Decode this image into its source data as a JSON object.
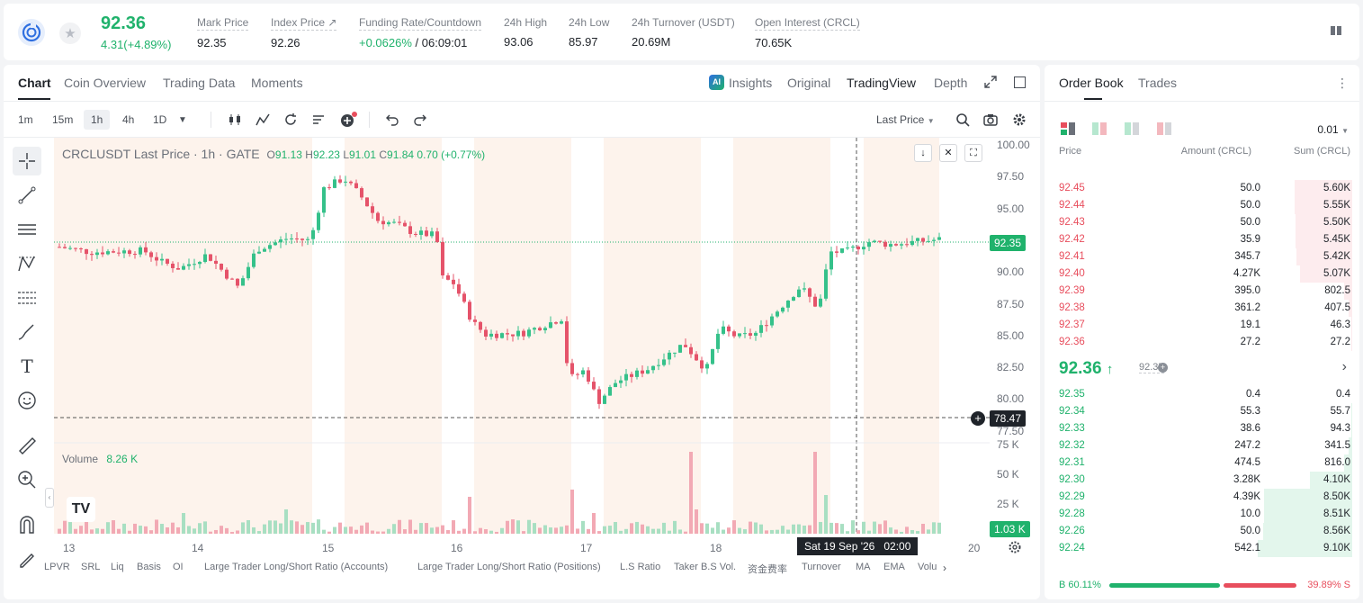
{
  "header": {
    "last_price": "92.36",
    "change": "4.31(+4.89%)",
    "stats": [
      {
        "label": "Mark Price",
        "value": "92.35"
      },
      {
        "label": "Index Price ↗",
        "value": "92.26"
      },
      {
        "label": "Funding Rate/Countdown",
        "value_green": "+0.0626%",
        "value": " / 06:09:01"
      },
      {
        "label": "24h High",
        "value": "93.06"
      },
      {
        "label": "24h Low",
        "value": "85.97"
      },
      {
        "label": "24h Turnover (USDT)",
        "value": "20.69M"
      },
      {
        "label": "Open Interest (CRCL)",
        "value": "70.65K"
      }
    ]
  },
  "chart_tabs": {
    "chart": "Chart",
    "coin": "Coin Overview",
    "trading": "Trading Data",
    "moments": "Moments"
  },
  "view_tabs": {
    "insights": "Insights",
    "original": "Original",
    "tradingview": "TradingView",
    "depth": "Depth"
  },
  "intervals": [
    "1m",
    "15m",
    "1h",
    "4h",
    "1D"
  ],
  "price_type": "Last Price",
  "legend": {
    "symbol": "CRCLUSDT Last Price · 1h · GATE",
    "o_label": "O",
    "o": "91.13",
    "h_label": "H",
    "h": "92.23",
    "l_label": "L",
    "l": "91.01",
    "c_label": "C",
    "c": "91.84",
    "chg": "0.70 (+0.77%)"
  },
  "volume": {
    "label": "Volume",
    "value": "8.26 K"
  },
  "price_axis": [
    "100.00",
    "97.50",
    "95.00",
    "92.50",
    "90.00",
    "87.50",
    "85.00",
    "82.50",
    "80.00",
    "77.50"
  ],
  "vol_axis": [
    "75 K",
    "50 K",
    "25 K"
  ],
  "price_tag": "92.35",
  "cross_tag": "78.47",
  "vol_tag": "1.03 K",
  "time_axis": [
    "13",
    "14",
    "15",
    "16",
    "17",
    "18",
    "20"
  ],
  "cross_time": "Sat 19 Sep '26",
  "cross_hour": "02:00",
  "indicators": [
    "LPVR",
    "SRL",
    "Liq",
    "Basis",
    "OI",
    "Large Trader Long/Short Ratio (Accounts)",
    "Large Trader Long/Short Ratio (Positions)",
    "L.S Ratio",
    "Taker B.S Vol.",
    "资金费率",
    "Turnover",
    "MA",
    "EMA",
    "Volu"
  ],
  "orderbook": {
    "tab_ob": "Order Book",
    "tab_trades": "Trades",
    "precision": "0.01",
    "col_price": "Price",
    "col_amount": "Amount (CRCL)",
    "col_sum": "Sum (CRCL)",
    "asks": [
      {
        "p": "92.45",
        "a": "50.0",
        "s": "5.60K",
        "d": 0.61
      },
      {
        "p": "92.44",
        "a": "50.0",
        "s": "5.55K",
        "d": 0.61
      },
      {
        "p": "92.43",
        "a": "50.0",
        "s": "5.50K",
        "d": 0.6
      },
      {
        "p": "92.42",
        "a": "35.9",
        "s": "5.45K",
        "d": 0.6
      },
      {
        "p": "92.41",
        "a": "345.7",
        "s": "5.42K",
        "d": 0.59
      },
      {
        "p": "92.40",
        "a": "4.27K",
        "s": "5.07K",
        "d": 0.55
      },
      {
        "p": "92.39",
        "a": "395.0",
        "s": "802.5",
        "d": 0.09
      },
      {
        "p": "92.38",
        "a": "361.2",
        "s": "407.5",
        "d": 0.04
      },
      {
        "p": "92.37",
        "a": "19.1",
        "s": "46.3",
        "d": 0.01
      },
      {
        "p": "92.36",
        "a": "27.2",
        "s": "27.2",
        "d": 0.005
      }
    ],
    "mid_price": "92.36",
    "mid_mark": "92.35",
    "bids": [
      {
        "p": "92.35",
        "a": "0.4",
        "s": "0.4",
        "d": 0.0
      },
      {
        "p": "92.34",
        "a": "55.3",
        "s": "55.7",
        "d": 0.006
      },
      {
        "p": "92.33",
        "a": "38.6",
        "s": "94.3",
        "d": 0.01
      },
      {
        "p": "92.32",
        "a": "247.2",
        "s": "341.5",
        "d": 0.04
      },
      {
        "p": "92.31",
        "a": "474.5",
        "s": "816.0",
        "d": 0.09
      },
      {
        "p": "92.30",
        "a": "3.28K",
        "s": "4.10K",
        "d": 0.45
      },
      {
        "p": "92.29",
        "a": "4.39K",
        "s": "8.50K",
        "d": 0.93
      },
      {
        "p": "92.28",
        "a": "10.0",
        "s": "8.51K",
        "d": 0.93
      },
      {
        "p": "92.26",
        "a": "50.0",
        "s": "8.56K",
        "d": 0.94
      },
      {
        "p": "92.24",
        "a": "542.1",
        "s": "9.10K",
        "d": 1.0
      }
    ],
    "buy_ratio": "B 60.11%",
    "sell_ratio": "39.89% S",
    "buy_frac": 0.6011
  },
  "colors": {
    "green": "#20b26c",
    "red": "#e84e5d",
    "up_candle": "#35c18a",
    "down_candle": "#e5536a"
  }
}
